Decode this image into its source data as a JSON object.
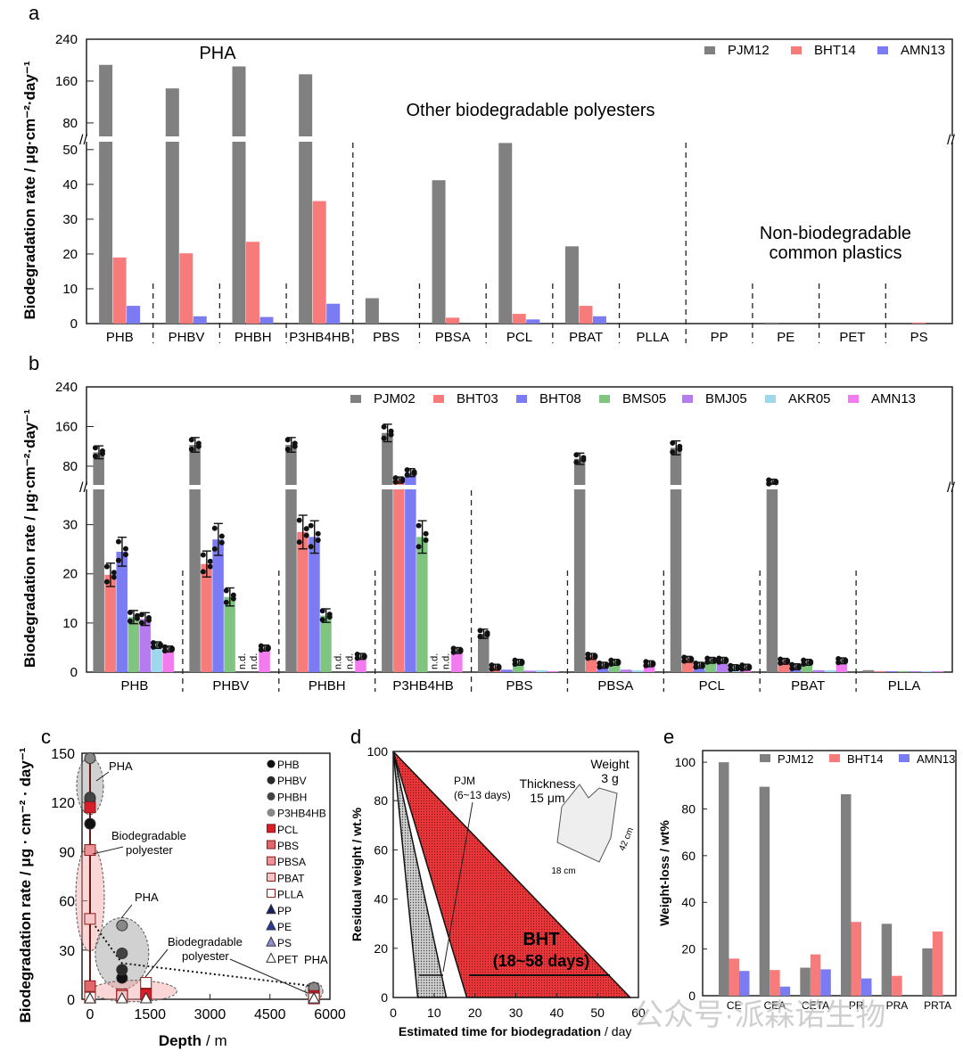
{
  "colors": {
    "gray": "#808080",
    "red": "#f77b7b",
    "blue": "#7b7bf3",
    "green": "#7fc47f",
    "purple": "#b57bef",
    "lightblue": "#9fd8ec",
    "pink": "#f27bf0",
    "dred": "#e2383b",
    "watermark": "#bdbdbd"
  },
  "watermark": "公众号·派森诺生物",
  "chart_data": [
    {
      "id": "a",
      "panel_label": "a",
      "type": "bar",
      "ylabel": "Biodegradation rate / μg·cm⁻²·day⁻¹",
      "broken_axis": {
        "lower_range": [
          0,
          52
        ],
        "upper_range": [
          56,
          240
        ],
        "lower_ticks": [
          "0",
          "10",
          "20",
          "30",
          "40",
          "50"
        ],
        "upper_ticks": [
          "80",
          "160",
          "240"
        ]
      },
      "categories": [
        "PHB",
        "PHBV",
        "PHBH",
        "P3HB4HB",
        "PBS",
        "PBSA",
        "PCL",
        "PBAT",
        "PLLA",
        "PP",
        "PE",
        "PET",
        "PS"
      ],
      "series": [
        {
          "name": "PJM12",
          "color": "gray",
          "values": [
            191,
            146,
            188,
            173,
            7.3,
            41.2,
            51.9,
            22.2,
            0,
            0,
            0.3,
            0,
            0
          ]
        },
        {
          "name": "BHT14",
          "color": "red",
          "values": [
            19.0,
            20.2,
            23.5,
            35.2,
            0,
            1.7,
            2.8,
            5.1,
            0,
            0,
            0,
            0,
            0.3
          ]
        },
        {
          "name": "AMN13",
          "color": "blue",
          "values": [
            5.1,
            2.1,
            1.9,
            5.7,
            0,
            0,
            1.2,
            2.1,
            0,
            0,
            0,
            0,
            0
          ]
        }
      ],
      "annotations": [
        "PHA",
        "Other biodegradable polyesters",
        "Non-biodegradable common plastics"
      ],
      "non_bio_lines": [
        "Non-biodegradable",
        "common plastics"
      ],
      "legend": "top-right"
    },
    {
      "id": "b",
      "panel_label": "b",
      "type": "bar",
      "ylabel": "Biodegradation rate / μg·cm⁻²·day⁻¹",
      "broken_axis": {
        "lower_range": [
          0,
          37
        ],
        "upper_range": [
          44,
          240
        ],
        "lower_ticks": [
          "0",
          "10",
          "20",
          "30"
        ],
        "upper_ticks": [
          "80",
          "160",
          "240"
        ]
      },
      "categories": [
        "PHB",
        "PHBV",
        "PHBH",
        "P3HB4HB",
        "PBS",
        "PBSA",
        "PCL",
        "PBAT",
        "PLLA"
      ],
      "nd_label": "n.d.",
      "series": [
        {
          "name": "PJM02",
          "color": "gray",
          "values": [
            108,
            123,
            123,
            147,
            7.8,
            95,
            117,
            48,
            0.4
          ]
        },
        {
          "name": "BHT03",
          "color": "red",
          "values": [
            19.8,
            22.0,
            28.5,
            52,
            1.0,
            3.2,
            2.6,
            2.2,
            0.2
          ]
        },
        {
          "name": "BHT08",
          "color": "blue",
          "values": [
            24.5,
            27.0,
            27.5,
            67,
            0.5,
            1.4,
            1.4,
            1.1,
            0.2
          ]
        },
        {
          "name": "BMS05",
          "color": "green",
          "values": [
            11.2,
            15.3,
            11.5,
            27.5,
            2.0,
            2.0,
            2.4,
            2.0,
            0.2
          ]
        },
        {
          "name": "BMJ05",
          "color": "purple",
          "values": [
            10.8,
            null,
            null,
            null,
            0.3,
            0.5,
            2.4,
            0.4,
            0.2
          ]
        },
        {
          "name": "AKR05",
          "color": "lightblue",
          "values": [
            5.5,
            null,
            null,
            null,
            0.4,
            0.4,
            0.9,
            0.4,
            0.2
          ]
        },
        {
          "name": "AMN13",
          "color": "pink",
          "values": [
            4.7,
            4.9,
            3.2,
            4.4,
            0.2,
            1.7,
            1.0,
            2.3,
            0.2
          ]
        }
      ],
      "legend": "top-right"
    },
    {
      "id": "c",
      "panel_label": "c",
      "type": "scatter",
      "xlabel": "Depth",
      "xunit": "/ m",
      "ylabel": "Biodegradation rate / μg · cm⁻² · day⁻¹",
      "xlim": [
        -200,
        6000
      ],
      "ylim": [
        0,
        150
      ],
      "xticks": [
        "0",
        "1500",
        "3000",
        "4500",
        "6000"
      ],
      "yticks": [
        "0",
        "30",
        "60",
        "90",
        "120",
        "150"
      ],
      "series": [
        {
          "name": "PHB",
          "marker": "circle",
          "fill": "#111111",
          "points": [
            [
              0,
              107
            ],
            [
              800,
              13
            ],
            [
              5600,
              4
            ]
          ]
        },
        {
          "name": "PHBV",
          "marker": "circle",
          "fill": "#2a2a2a",
          "points": [
            [
              0,
              122
            ],
            [
              800,
              18
            ],
            [
              5600,
              5
            ]
          ]
        },
        {
          "name": "PHBH",
          "marker": "circle",
          "fill": "#444444",
          "points": [
            [
              0,
              123
            ],
            [
              800,
              28
            ],
            [
              5600,
              6
            ]
          ]
        },
        {
          "name": "P3HB4HB",
          "marker": "circle",
          "fill": "#888888",
          "points": [
            [
              0,
              147
            ],
            [
              800,
              45
            ],
            [
              5600,
              7
            ]
          ]
        },
        {
          "name": "PCL",
          "marker": "square",
          "fill": "#d61f2a",
          "points": [
            [
              0,
              117
            ],
            [
              1400,
              3
            ],
            [
              5600,
              2
            ]
          ]
        },
        {
          "name": "PBS",
          "marker": "square",
          "fill": "#e2676c",
          "points": [
            [
              0,
              8
            ],
            [
              800,
              2
            ],
            [
              5600,
              1
            ]
          ]
        },
        {
          "name": "PBSA",
          "marker": "square",
          "fill": "#ec9498",
          "points": [
            [
              0,
              91
            ],
            [
              800,
              3
            ],
            [
              5600,
              1
            ]
          ]
        },
        {
          "name": "PBAT",
          "marker": "square",
          "fill": "#f5c5c7",
          "points": [
            [
              0,
              49
            ],
            [
              800,
              2
            ],
            [
              5600,
              1
            ]
          ]
        },
        {
          "name": "PLLA",
          "marker": "square",
          "fill": "#ffffff",
          "points": [
            [
              0,
              1
            ],
            [
              1400,
              10
            ],
            [
              5600,
              0.5
            ]
          ]
        },
        {
          "name": "PP",
          "marker": "triangle",
          "fill": "#1b1f66",
          "points": [
            [
              0,
              0
            ],
            [
              800,
              0
            ],
            [
              1400,
              0
            ],
            [
              5600,
              0
            ]
          ]
        },
        {
          "name": "PE",
          "marker": "triangle",
          "fill": "#2a3a9a",
          "points": [
            [
              0,
              0
            ],
            [
              800,
              0
            ],
            [
              1400,
              0
            ],
            [
              5600,
              0
            ]
          ]
        },
        {
          "name": "PS",
          "marker": "triangle",
          "fill": "#8a8fd0",
          "points": [
            [
              0,
              0
            ],
            [
              800,
              0
            ],
            [
              1400,
              0
            ],
            [
              5600,
              0
            ]
          ]
        },
        {
          "name": "PET",
          "marker": "triangle",
          "fill": "#ffffff",
          "points": [
            [
              0,
              0
            ],
            [
              800,
              0
            ],
            [
              1400,
              0
            ],
            [
              5600,
              0
            ]
          ]
        }
      ],
      "annotations": [
        {
          "text": "PHA"
        },
        {
          "text": "Biodegradable polyester",
          "lines": [
            "Biodegradable",
            "polyester"
          ]
        },
        {
          "text": "PHA"
        },
        {
          "text": "Biodegradable polyester",
          "lines": [
            "Biodegradable",
            "polyester"
          ]
        },
        {
          "text": "PHA"
        }
      ],
      "legend": "right"
    },
    {
      "id": "d",
      "panel_label": "d",
      "type": "area",
      "xlabel": "Estimated time for biodegradation",
      "xunit": "/ day",
      "ylabel": "Residual weight / wt.%",
      "xlim": [
        0,
        60
      ],
      "ylim": [
        0,
        100
      ],
      "xticks": [
        "0",
        "10",
        "20",
        "30",
        "40",
        "50",
        "60"
      ],
      "yticks": [
        "0",
        "20",
        "40",
        "60",
        "80",
        "100"
      ],
      "regions": [
        {
          "name": "PJM",
          "range_days": [
            6,
            13
          ],
          "label": "PJM",
          "sublabel": "(6~13 days)",
          "color": "#9a9a9a"
        },
        {
          "name": "BHT",
          "range_days": [
            18,
            58
          ],
          "label": "BHT",
          "sublabel": "(18~58 days)",
          "color": "#e8363a"
        }
      ],
      "inset": {
        "weight_label": "Weight",
        "weight_value": "3 g",
        "thickness_label": "Thickness",
        "thickness_value": "15 μm",
        "width_label": "18 cm",
        "height_label": "42 cm"
      }
    },
    {
      "id": "e",
      "panel_label": "e",
      "type": "bar",
      "ylabel": "Weight-loss / wt%",
      "ylim": [
        0,
        105
      ],
      "yticks": [
        "0",
        "20",
        "40",
        "60",
        "80",
        "100"
      ],
      "categories": [
        "CE",
        "CEA",
        "CETA",
        "PR",
        "PRA",
        "PRTA"
      ],
      "series": [
        {
          "name": "PJM12",
          "color": "gray",
          "values": [
            100,
            89.5,
            12,
            86.3,
            30.8,
            20.3
          ]
        },
        {
          "name": "BHT14",
          "color": "red",
          "values": [
            15.9,
            11.0,
            17.7,
            31.6,
            8.5,
            27.5
          ]
        },
        {
          "name": "AMN13",
          "color": "blue",
          "values": [
            10.6,
            3.9,
            11.3,
            7.4,
            0,
            0
          ]
        }
      ],
      "legend": "top"
    }
  ]
}
